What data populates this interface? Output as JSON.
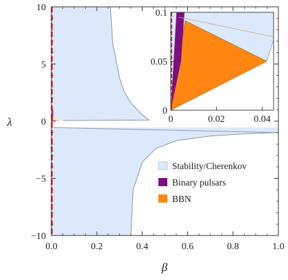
{
  "chart_data": {
    "type": "area",
    "xlabel": "β",
    "ylabel": "λ",
    "xlim": [
      0,
      1
    ],
    "ylim": [
      -10,
      10
    ],
    "x_ticks": [
      "0.0",
      "0.2",
      "0.4",
      "0.6",
      "0.8",
      "1.0"
    ],
    "y_ticks": [
      "−10",
      "−5",
      "0",
      "5",
      "10"
    ],
    "legend": [
      {
        "label": "Stability/Cherenkov",
        "color": "#dbe9fb"
      },
      {
        "label": "Binary pulsars",
        "color": "#7c0f80"
      },
      {
        "label": "BBN",
        "color": "#ff8711"
      }
    ],
    "legend_position": "bottom-right",
    "reference_line": {
      "x": 0,
      "color": "#e8211d",
      "style": "dashed"
    },
    "series": [
      {
        "name": "Stability/Cherenkov",
        "region": "upper",
        "boundary": [
          [
            0.26,
            10
          ],
          [
            0.27,
            6.8
          ],
          [
            0.3,
            3.8
          ],
          [
            0.32,
            2.6
          ],
          [
            0.35,
            1.6
          ],
          [
            0.4,
            0.55
          ],
          [
            0.43,
            0.1
          ]
        ]
      },
      {
        "name": "Stability/Cherenkov",
        "region": "lower",
        "boundary": [
          [
            0.35,
            -10
          ],
          [
            0.36,
            -6
          ],
          [
            0.4,
            -3.6
          ],
          [
            0.46,
            -2.4
          ],
          [
            0.55,
            -1.7
          ],
          [
            0.7,
            -1.3
          ],
          [
            0.85,
            -1.1
          ],
          [
            1.0,
            -1.0
          ]
        ]
      },
      {
        "name": "Binary pulsars",
        "points": [
          [
            0.0,
            0.0
          ],
          [
            0.006,
            0.1
          ]
        ]
      },
      {
        "name": "BBN",
        "points": [
          [
            0.0,
            0.0
          ],
          [
            0.042,
            0.05
          ],
          [
            0.0,
            0.1
          ]
        ]
      }
    ],
    "inset": {
      "xlim": [
        0,
        0.045
      ],
      "ylim": [
        0,
        0.1
      ],
      "x_ticks": [
        "0",
        "0.02",
        "0.04"
      ],
      "y_ticks": [
        "0",
        "0.05",
        "0.1"
      ],
      "binary_pulsars": [
        [
          0.0,
          0.0
        ],
        [
          0.0025,
          0.1
        ],
        [
          0.006,
          0.1
        ]
      ],
      "bbn": [
        [
          0.0,
          0.0
        ],
        [
          0.042,
          0.05
        ],
        [
          0.0063,
          0.0915
        ]
      ],
      "stability_boundary": [
        [
          0.0,
          0.1
        ],
        [
          0.045,
          0.075
        ]
      ]
    }
  }
}
